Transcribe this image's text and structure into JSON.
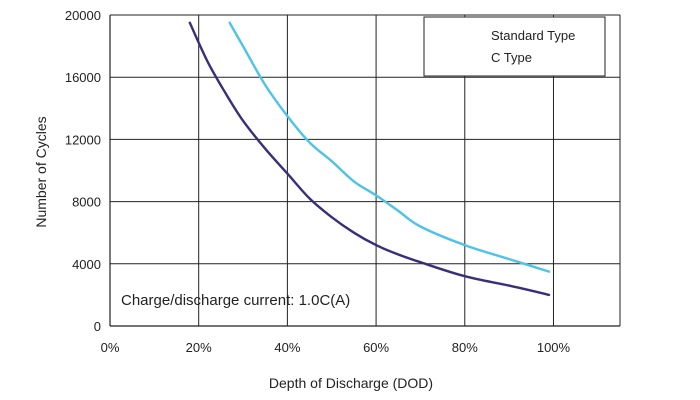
{
  "chart_data": {
    "type": "line",
    "title": "",
    "xlabel": "Depth of Discharge (DOD)",
    "ylabel": "Number of Cycles",
    "xlim": [
      0,
      115
    ],
    "ylim": [
      0,
      20000
    ],
    "x_ticks": [
      0,
      20,
      40,
      60,
      80,
      100
    ],
    "x_tick_labels": [
      "0%",
      "20%",
      "40%",
      "60%",
      "80%",
      "100%"
    ],
    "y_ticks": [
      0,
      4000,
      8000,
      12000,
      16000,
      20000
    ],
    "y_tick_labels": [
      "0",
      "4000",
      "8000",
      "12000",
      "16000",
      "20000"
    ],
    "grid": true,
    "annotation": "Charge/discharge current: 1.0C(A)",
    "legend_position": "top-right",
    "series": [
      {
        "name": "Standard Type",
        "color": "#3a2e7a",
        "points": [
          [
            18,
            19500
          ],
          [
            22,
            17000
          ],
          [
            26,
            15000
          ],
          [
            30,
            13200
          ],
          [
            35,
            11400
          ],
          [
            40,
            9800
          ],
          [
            45,
            8200
          ],
          [
            50,
            7000
          ],
          [
            55,
            6000
          ],
          [
            60,
            5200
          ],
          [
            65,
            4600
          ],
          [
            70,
            4100
          ],
          [
            80,
            3200
          ],
          [
            90,
            2600
          ],
          [
            99,
            2000
          ]
        ]
      },
      {
        "name": "C Type",
        "color": "#4dc3e8",
        "points": [
          [
            27,
            19500
          ],
          [
            30,
            18000
          ],
          [
            35,
            15500
          ],
          [
            40,
            13500
          ],
          [
            45,
            11800
          ],
          [
            50,
            10600
          ],
          [
            55,
            9300
          ],
          [
            60,
            8400
          ],
          [
            65,
            7400
          ],
          [
            70,
            6400
          ],
          [
            80,
            5200
          ],
          [
            90,
            4300
          ],
          [
            99,
            3500
          ]
        ]
      }
    ]
  }
}
